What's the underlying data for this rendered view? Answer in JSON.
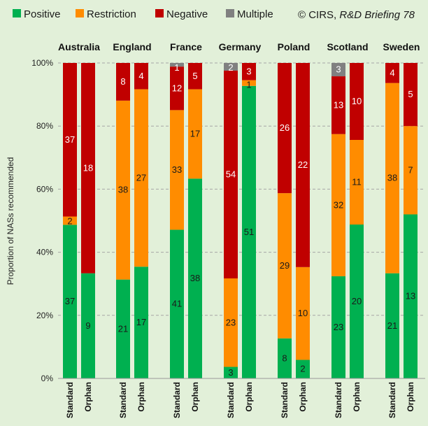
{
  "legend": [
    {
      "name": "Positive",
      "color": "#00b050"
    },
    {
      "name": "Restriction",
      "color": "#ff8c00"
    },
    {
      "name": "Negative",
      "color": "#c00000"
    },
    {
      "name": "Multiple",
      "color": "#808080"
    }
  ],
  "credit": {
    "prefix": "© CIRS, ",
    "italic": "R&D Briefing 78"
  },
  "chart_data": {
    "type": "bar",
    "stacked": true,
    "ylabel": "Proportion of NASs recommended",
    "ylim": [
      0,
      100
    ],
    "yticks": [
      "0%",
      "20%",
      "40%",
      "60%",
      "80%",
      "100%"
    ],
    "grid": true,
    "legend_position": "top",
    "series_names": [
      "Positive",
      "Restriction",
      "Negative",
      "Multiple"
    ],
    "groups": [
      {
        "country": "Australia",
        "bars": [
          {
            "category": "Standard",
            "values": [
              37,
              2,
              37,
              0
            ]
          },
          {
            "category": "Orphan",
            "values": [
              9,
              0,
              18,
              0
            ]
          }
        ]
      },
      {
        "country": "England",
        "bars": [
          {
            "category": "Standard",
            "values": [
              21,
              38,
              8,
              0
            ]
          },
          {
            "category": "Orphan",
            "values": [
              17,
              27,
              4,
              0
            ]
          }
        ]
      },
      {
        "country": "France",
        "bars": [
          {
            "category": "Standard",
            "values": [
              41,
              33,
              12,
              1
            ]
          },
          {
            "category": "Orphan",
            "values": [
              38,
              17,
              5,
              0
            ]
          }
        ]
      },
      {
        "country": "Germany",
        "bars": [
          {
            "category": "Standard",
            "values": [
              3,
              23,
              54,
              2
            ]
          },
          {
            "category": "Orphan",
            "values": [
              51,
              1,
              3,
              0
            ]
          }
        ]
      },
      {
        "country": "Poland",
        "bars": [
          {
            "category": "Standard",
            "values": [
              8,
              29,
              26,
              0
            ]
          },
          {
            "category": "Orphan",
            "values": [
              2,
              10,
              22,
              0
            ]
          }
        ]
      },
      {
        "country": "Scotland",
        "bars": [
          {
            "category": "Standard",
            "values": [
              23,
              32,
              13,
              3
            ]
          },
          {
            "category": "Orphan",
            "values": [
              20,
              11,
              10,
              0
            ]
          }
        ]
      },
      {
        "country": "Sweden",
        "bars": [
          {
            "category": "Standard",
            "values": [
              21,
              38,
              4,
              0
            ]
          },
          {
            "category": "Orphan",
            "values": [
              13,
              7,
              5,
              0
            ]
          }
        ]
      }
    ]
  }
}
